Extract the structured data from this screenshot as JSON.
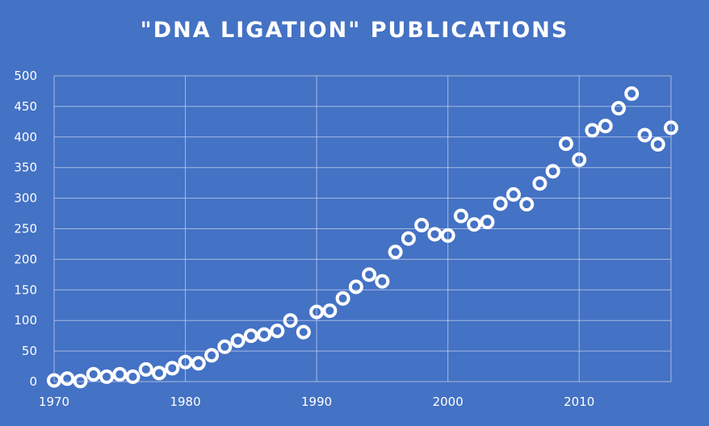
{
  "chart_data": {
    "type": "scatter",
    "title": "\"DNA LIGATION\" PUBLICATIONS",
    "xlabel": "",
    "ylabel": "",
    "xlim": [
      1970,
      2017
    ],
    "ylim": [
      0,
      500
    ],
    "x_ticks": [
      1970,
      1980,
      1990,
      2000,
      2010
    ],
    "y_ticks": [
      0,
      50,
      100,
      150,
      200,
      250,
      300,
      350,
      400,
      450,
      500
    ],
    "grid": true,
    "legend": "none",
    "marker_color": "#ffffff",
    "background_color": "#4472c4",
    "x": [
      1970,
      1971,
      1972,
      1973,
      1974,
      1975,
      1976,
      1977,
      1978,
      1979,
      1980,
      1981,
      1982,
      1983,
      1984,
      1985,
      1986,
      1987,
      1988,
      1989,
      1990,
      1991,
      1992,
      1993,
      1994,
      1995,
      1996,
      1997,
      1998,
      1999,
      2000,
      2001,
      2002,
      2003,
      2004,
      2005,
      2006,
      2007,
      2008,
      2009,
      2010,
      2011,
      2012,
      2013,
      2014,
      2015,
      2016,
      2017
    ],
    "y": [
      2,
      5,
      1,
      12,
      8,
      12,
      8,
      20,
      14,
      22,
      32,
      30,
      43,
      57,
      67,
      75,
      77,
      83,
      100,
      81,
      114,
      116,
      136,
      155,
      175,
      164,
      212,
      234,
      256,
      241,
      239,
      271,
      257,
      261,
      291,
      306,
      290,
      324,
      344,
      389,
      363,
      411,
      418,
      447,
      471,
      403,
      388,
      415
    ]
  }
}
